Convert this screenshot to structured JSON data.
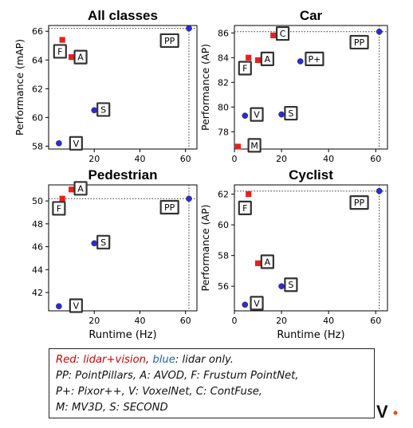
{
  "chart_data": [
    {
      "type": "scatter",
      "title": "All classes",
      "xlabel": "",
      "ylabel": "Performance (mAP)",
      "xlim": [
        0,
        65
      ],
      "ylim": [
        57.8,
        66.4
      ],
      "xticks": [
        "20",
        "40",
        "60"
      ],
      "xtick_values": [
        20,
        40,
        60
      ],
      "yticks": [
        "58",
        "60",
        "62",
        "64",
        "66"
      ],
      "ytick_values": [
        58,
        60,
        62,
        64,
        66
      ],
      "best": {
        "x": 61.5,
        "y": 66.2
      },
      "points": [
        {
          "label": "PP",
          "x": 61.5,
          "y": 66.2,
          "group": "lidar",
          "lx": 53,
          "ly": 65.35
        },
        {
          "label": "F",
          "x": 6,
          "y": 65.4,
          "group": "lidar+vision",
          "lx": 5,
          "ly": 64.6
        },
        {
          "label": "A",
          "x": 10,
          "y": 64.2,
          "group": "lidar+vision",
          "lx": 14,
          "ly": 64.2
        },
        {
          "label": "S",
          "x": 20,
          "y": 60.5,
          "group": "lidar",
          "lx": 24,
          "ly": 60.55
        },
        {
          "label": "V",
          "x": 4.5,
          "y": 58.2,
          "group": "lidar",
          "lx": 12,
          "ly": 58.2
        }
      ]
    },
    {
      "type": "scatter",
      "title": "Car",
      "xlabel": "",
      "ylabel": "Performance (AP)",
      "xlim": [
        0,
        65
      ],
      "ylim": [
        76.6,
        86.6
      ],
      "xticks": [
        "0",
        "20",
        "40",
        "60"
      ],
      "xtick_values": [
        0,
        20,
        40,
        60
      ],
      "yticks": [
        "78",
        "80",
        "82",
        "84",
        "86"
      ],
      "ytick_values": [
        78,
        80,
        82,
        84,
        86
      ],
      "best": {
        "x": 61.5,
        "y": 86.1
      },
      "points": [
        {
          "label": "PP",
          "x": 61.5,
          "y": 86.1,
          "group": "lidar",
          "lx": 53,
          "ly": 85.25
        },
        {
          "label": "C",
          "x": 16.5,
          "y": 85.8,
          "group": "lidar+vision",
          "lx": 20.5,
          "ly": 85.95
        },
        {
          "label": "F",
          "x": 6,
          "y": 84.0,
          "group": "lidar+vision",
          "lx": 4.5,
          "ly": 83.15
        },
        {
          "label": "A",
          "x": 10,
          "y": 83.8,
          "group": "lidar+vision",
          "lx": 14,
          "ly": 83.9
        },
        {
          "label": "P+",
          "x": 28,
          "y": 83.7,
          "group": "lidar",
          "lx": 34,
          "ly": 83.9
        },
        {
          "label": "V",
          "x": 4.5,
          "y": 79.3,
          "group": "lidar",
          "lx": 9.5,
          "ly": 79.4
        },
        {
          "label": "S",
          "x": 20,
          "y": 79.4,
          "group": "lidar",
          "lx": 24,
          "ly": 79.5
        },
        {
          "label": "M",
          "x": 1.5,
          "y": 76.8,
          "group": "lidar+vision",
          "lx": 8.5,
          "ly": 76.9
        }
      ]
    },
    {
      "type": "scatter",
      "title": "Pedestrian",
      "xlabel": "Runtime (Hz)",
      "ylabel": "",
      "xlim": [
        0,
        65
      ],
      "ylim": [
        40.4,
        51.4
      ],
      "xticks": [
        "20",
        "40",
        "60"
      ],
      "xtick_values": [
        20,
        40,
        60
      ],
      "yticks": [
        "42",
        "44",
        "46",
        "48",
        "50"
      ],
      "ytick_values": [
        42,
        44,
        46,
        48,
        50
      ],
      "best": {
        "x": 61.5,
        "y": 50.2
      },
      "points": [
        {
          "label": "PP",
          "x": 61.5,
          "y": 50.2,
          "group": "lidar",
          "lx": 53,
          "ly": 49.45
        },
        {
          "label": "A",
          "x": 10,
          "y": 51.0,
          "group": "lidar+vision",
          "lx": 14,
          "ly": 51.1
        },
        {
          "label": "F",
          "x": 6,
          "y": 50.2,
          "group": "lidar+vision",
          "lx": 4.5,
          "ly": 49.35
        },
        {
          "label": "S",
          "x": 20,
          "y": 46.3,
          "group": "lidar",
          "lx": 24,
          "ly": 46.4
        },
        {
          "label": "V",
          "x": 4.5,
          "y": 40.8,
          "group": "lidar",
          "lx": 12,
          "ly": 40.85
        }
      ]
    },
    {
      "type": "scatter",
      "title": "Cyclist",
      "xlabel": "Runtime (Hz)",
      "ylabel": "Performance (AP)",
      "xlim": [
        0,
        65
      ],
      "ylim": [
        54.4,
        62.6
      ],
      "xticks": [
        "0",
        "20",
        "40",
        "60"
      ],
      "xtick_values": [
        0,
        20,
        40,
        60
      ],
      "yticks": [
        "56",
        "58",
        "60",
        "62"
      ],
      "ytick_values": [
        56,
        58,
        60,
        62
      ],
      "best": {
        "x": 61.5,
        "y": 62.2
      },
      "points": [
        {
          "label": "PP",
          "x": 61.5,
          "y": 62.2,
          "group": "lidar",
          "lx": 53,
          "ly": 61.45
        },
        {
          "label": "F",
          "x": 6,
          "y": 62.0,
          "group": "lidar+vision",
          "lx": 4.5,
          "ly": 61.1
        },
        {
          "label": "A",
          "x": 10,
          "y": 57.5,
          "group": "lidar+vision",
          "lx": 14,
          "ly": 57.6
        },
        {
          "label": "S",
          "x": 20,
          "y": 56.0,
          "group": "lidar",
          "lx": 24,
          "ly": 56.1
        },
        {
          "label": "V",
          "x": 4.5,
          "y": 54.8,
          "group": "lidar",
          "lx": 9.5,
          "ly": 54.9
        }
      ]
    }
  ],
  "legend": {
    "red_text": "Red: lidar+vision",
    "separator": ", ",
    "blue_text": "blue",
    "blue_rest": ": lidar only.",
    "line2": "PP: PointPillars, A: AVOD, F: Frustum PointNet,",
    "line3": "P+: Pixor++, V: VoxelNet, C: ContFuse,",
    "line4": "M: MV3D, S: SECOND"
  },
  "colors": {
    "lidar+vision": "#e8201c",
    "lidar": "#2b2bd6",
    "legend_red": "#d40000",
    "legend_blue": "#1f5fb4",
    "logo_dot": "#e84a1a"
  },
  "logo": {
    "letter": "V"
  }
}
